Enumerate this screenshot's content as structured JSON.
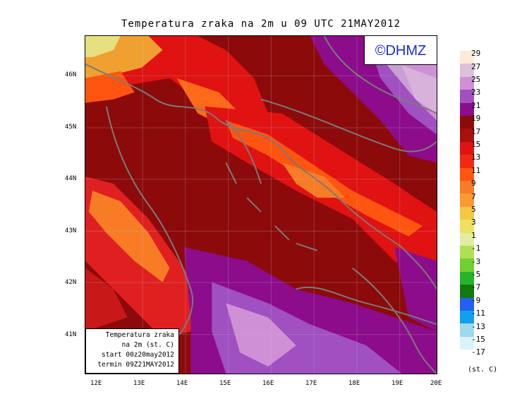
{
  "title": "Temperatura zraka na 2m u 09 UTC 21MAY2012",
  "logo": "©DHMZ",
  "info": {
    "line1": "Temperatura zraka",
    "line2": "na 2m (st. C)",
    "line3": "start 00z20may2012",
    "line4": "termin 09Z21MAY2012"
  },
  "units": "(st. C)",
  "x_ticks": [
    "12E",
    "13E",
    "14E",
    "15E",
    "16E",
    "17E",
    "18E",
    "19E",
    "20E"
  ],
  "y_ticks": [
    "46N",
    "45N",
    "44N",
    "43N",
    "42N",
    "41N"
  ],
  "legend": {
    "labels": [
      "29",
      "27",
      "25",
      "23",
      "21",
      "19",
      "17",
      "15",
      "13",
      "11",
      "9",
      "7",
      "5",
      "3",
      "1",
      "-1",
      "-3",
      "-5",
      "-7",
      "-9",
      "-11",
      "-13",
      "-15",
      "-17"
    ],
    "colors": [
      "#fcebd6",
      "#dcc0dc",
      "#d090d6",
      "#a050c0",
      "#8c0c8c",
      "#8c0a0a",
      "#a81010",
      "#e01212",
      "#f02a12",
      "#ff5510",
      "#f87c25",
      "#fa9a30",
      "#f4c842",
      "#f0e060",
      "#e0eca0",
      "#b0e050",
      "#70d030",
      "#28b42a",
      "#107a10",
      "#2460f0",
      "#10a0f0",
      "#a0d8f0",
      "#d8f4fa",
      "#ffffff"
    ]
  },
  "colors": {
    "sea": "#8c0a0a",
    "coast": "#7a7a7a",
    "logo": "#1a2ad6"
  }
}
